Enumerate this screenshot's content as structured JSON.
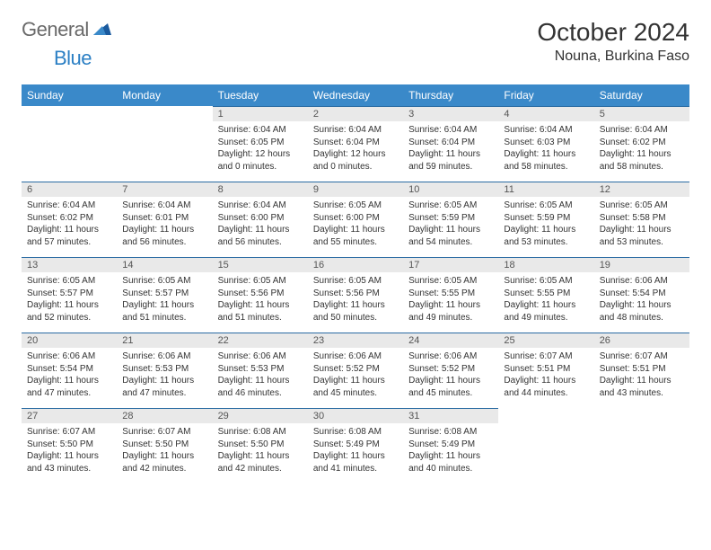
{
  "logo": {
    "word1": "General",
    "word2": "Blue"
  },
  "header": {
    "title": "October 2024",
    "location": "Nouna, Burkina Faso"
  },
  "colors": {
    "header_bg": "#3a89c9",
    "header_text": "#ffffff",
    "daynum_bg": "#e9e9e9",
    "daynum_border": "#2b6ca3",
    "logo_gray": "#6a6a6a",
    "logo_blue": "#2b7fc4"
  },
  "weekdays": [
    "Sunday",
    "Monday",
    "Tuesday",
    "Wednesday",
    "Thursday",
    "Friday",
    "Saturday"
  ],
  "leading_blanks": 2,
  "days": [
    {
      "n": "1",
      "sr": "6:04 AM",
      "ss": "6:05 PM",
      "dl": "12 hours and 0 minutes."
    },
    {
      "n": "2",
      "sr": "6:04 AM",
      "ss": "6:04 PM",
      "dl": "12 hours and 0 minutes."
    },
    {
      "n": "3",
      "sr": "6:04 AM",
      "ss": "6:04 PM",
      "dl": "11 hours and 59 minutes."
    },
    {
      "n": "4",
      "sr": "6:04 AM",
      "ss": "6:03 PM",
      "dl": "11 hours and 58 minutes."
    },
    {
      "n": "5",
      "sr": "6:04 AM",
      "ss": "6:02 PM",
      "dl": "11 hours and 58 minutes."
    },
    {
      "n": "6",
      "sr": "6:04 AM",
      "ss": "6:02 PM",
      "dl": "11 hours and 57 minutes."
    },
    {
      "n": "7",
      "sr": "6:04 AM",
      "ss": "6:01 PM",
      "dl": "11 hours and 56 minutes."
    },
    {
      "n": "8",
      "sr": "6:04 AM",
      "ss": "6:00 PM",
      "dl": "11 hours and 56 minutes."
    },
    {
      "n": "9",
      "sr": "6:05 AM",
      "ss": "6:00 PM",
      "dl": "11 hours and 55 minutes."
    },
    {
      "n": "10",
      "sr": "6:05 AM",
      "ss": "5:59 PM",
      "dl": "11 hours and 54 minutes."
    },
    {
      "n": "11",
      "sr": "6:05 AM",
      "ss": "5:59 PM",
      "dl": "11 hours and 53 minutes."
    },
    {
      "n": "12",
      "sr": "6:05 AM",
      "ss": "5:58 PM",
      "dl": "11 hours and 53 minutes."
    },
    {
      "n": "13",
      "sr": "6:05 AM",
      "ss": "5:57 PM",
      "dl": "11 hours and 52 minutes."
    },
    {
      "n": "14",
      "sr": "6:05 AM",
      "ss": "5:57 PM",
      "dl": "11 hours and 51 minutes."
    },
    {
      "n": "15",
      "sr": "6:05 AM",
      "ss": "5:56 PM",
      "dl": "11 hours and 51 minutes."
    },
    {
      "n": "16",
      "sr": "6:05 AM",
      "ss": "5:56 PM",
      "dl": "11 hours and 50 minutes."
    },
    {
      "n": "17",
      "sr": "6:05 AM",
      "ss": "5:55 PM",
      "dl": "11 hours and 49 minutes."
    },
    {
      "n": "18",
      "sr": "6:05 AM",
      "ss": "5:55 PM",
      "dl": "11 hours and 49 minutes."
    },
    {
      "n": "19",
      "sr": "6:06 AM",
      "ss": "5:54 PM",
      "dl": "11 hours and 48 minutes."
    },
    {
      "n": "20",
      "sr": "6:06 AM",
      "ss": "5:54 PM",
      "dl": "11 hours and 47 minutes."
    },
    {
      "n": "21",
      "sr": "6:06 AM",
      "ss": "5:53 PM",
      "dl": "11 hours and 47 minutes."
    },
    {
      "n": "22",
      "sr": "6:06 AM",
      "ss": "5:53 PM",
      "dl": "11 hours and 46 minutes."
    },
    {
      "n": "23",
      "sr": "6:06 AM",
      "ss": "5:52 PM",
      "dl": "11 hours and 45 minutes."
    },
    {
      "n": "24",
      "sr": "6:06 AM",
      "ss": "5:52 PM",
      "dl": "11 hours and 45 minutes."
    },
    {
      "n": "25",
      "sr": "6:07 AM",
      "ss": "5:51 PM",
      "dl": "11 hours and 44 minutes."
    },
    {
      "n": "26",
      "sr": "6:07 AM",
      "ss": "5:51 PM",
      "dl": "11 hours and 43 minutes."
    },
    {
      "n": "27",
      "sr": "6:07 AM",
      "ss": "5:50 PM",
      "dl": "11 hours and 43 minutes."
    },
    {
      "n": "28",
      "sr": "6:07 AM",
      "ss": "5:50 PM",
      "dl": "11 hours and 42 minutes."
    },
    {
      "n": "29",
      "sr": "6:08 AM",
      "ss": "5:50 PM",
      "dl": "11 hours and 42 minutes."
    },
    {
      "n": "30",
      "sr": "6:08 AM",
      "ss": "5:49 PM",
      "dl": "11 hours and 41 minutes."
    },
    {
      "n": "31",
      "sr": "6:08 AM",
      "ss": "5:49 PM",
      "dl": "11 hours and 40 minutes."
    }
  ],
  "labels": {
    "sunrise": "Sunrise:",
    "sunset": "Sunset:",
    "daylight": "Daylight:"
  }
}
